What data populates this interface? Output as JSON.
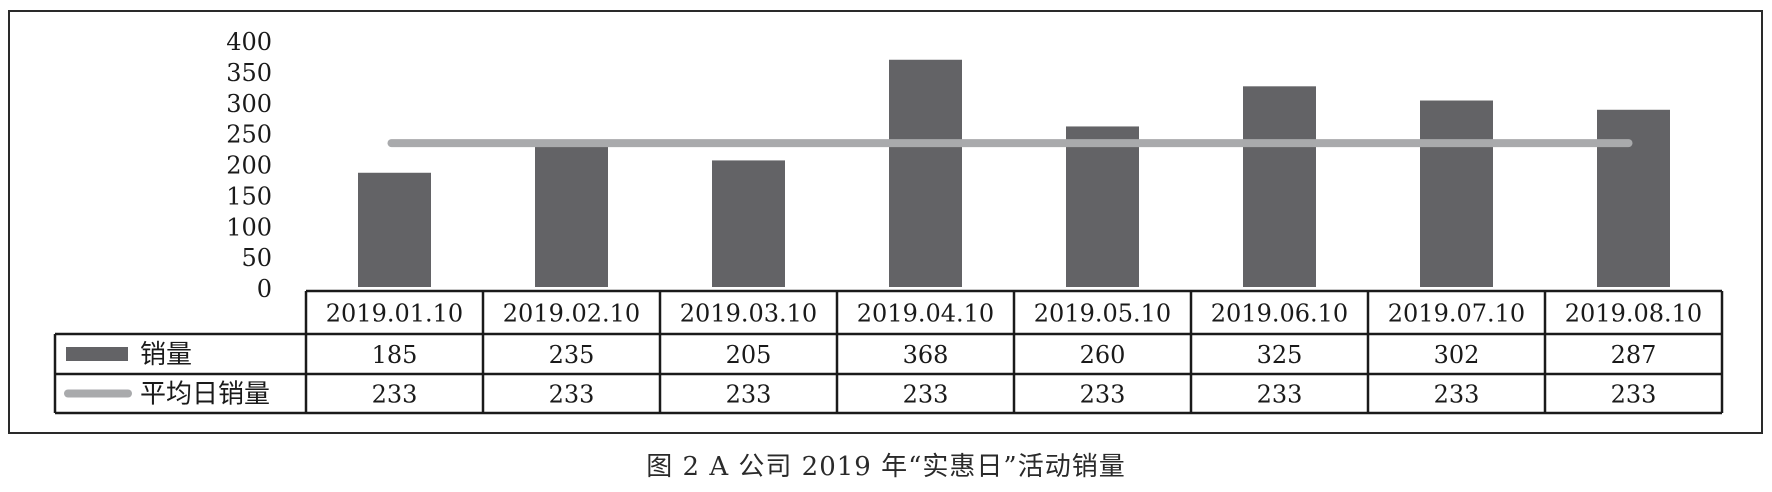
{
  "caption": "图 2 A 公司 2019 年“实惠日”活动销量",
  "colors": {
    "bar": "#636366",
    "line": "#a9aaac",
    "frame": "#2a2a2a",
    "text": "#1a1a1a"
  },
  "chart_data": {
    "type": "bar",
    "title": "",
    "categories": [
      "2019.01.10",
      "2019.02.10",
      "2019.03.10",
      "2019.04.10",
      "2019.05.10",
      "2019.06.10",
      "2019.07.10",
      "2019.08.10"
    ],
    "ylim": [
      0,
      400
    ],
    "yticks": [
      "400",
      "350",
      "300",
      "250",
      "200",
      "150",
      "100",
      "50",
      "0"
    ],
    "ytick_values": [
      400,
      350,
      300,
      250,
      200,
      150,
      100,
      50,
      0
    ],
    "series": [
      {
        "name": "销量",
        "kind": "bar",
        "values": [
          185,
          235,
          205,
          368,
          260,
          325,
          302,
          287
        ],
        "labels": [
          "185",
          "235",
          "205",
          "368",
          "260",
          "325",
          "302",
          "287"
        ]
      },
      {
        "name": "平均日销量",
        "kind": "line",
        "values": [
          233,
          233,
          233,
          233,
          233,
          233,
          233,
          233
        ],
        "labels": [
          "233",
          "233",
          "233",
          "233",
          "233",
          "233",
          "233",
          "233"
        ]
      }
    ],
    "legend": "data-table",
    "grid": false
  }
}
